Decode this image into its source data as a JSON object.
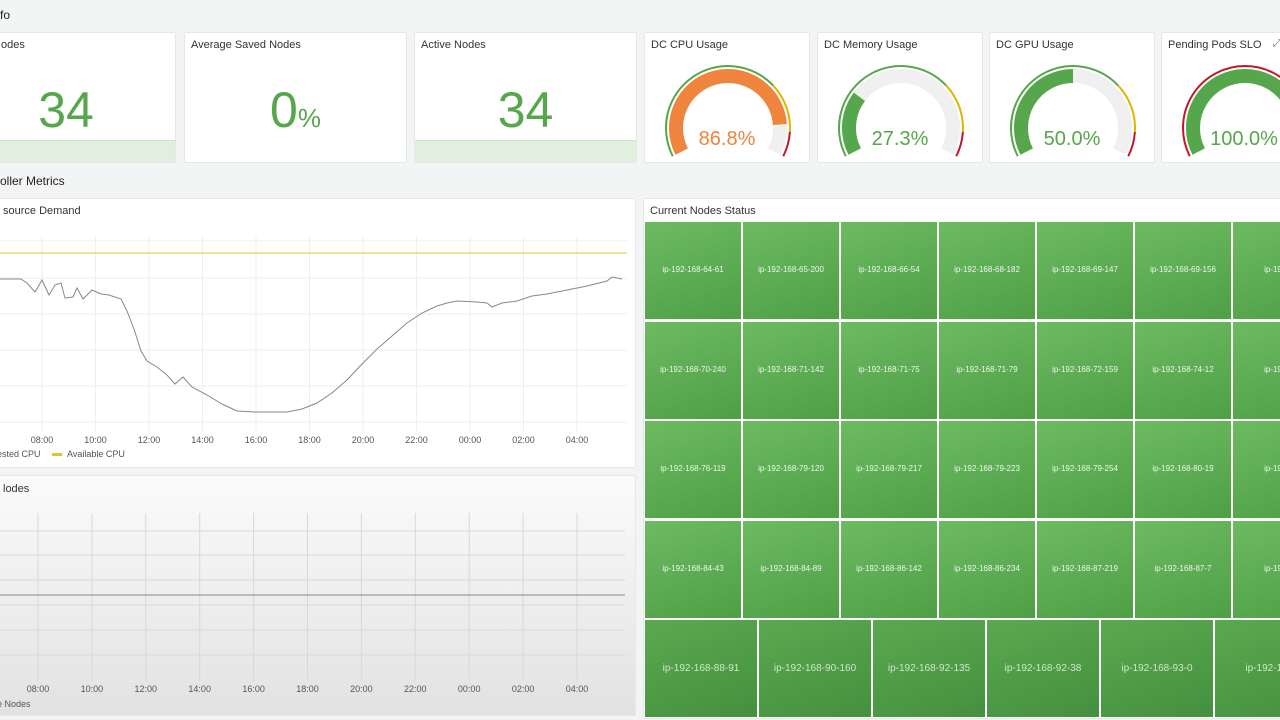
{
  "rows": {
    "info": "fo",
    "controller": "oller Metrics"
  },
  "stats": [
    {
      "title": "odes",
      "value": "34",
      "unit": ""
    },
    {
      "title": "Average Saved Nodes",
      "value": "0",
      "unit": "%"
    },
    {
      "title": "Active Nodes",
      "value": "34",
      "unit": ""
    }
  ],
  "gauges": [
    {
      "title": "DC CPU Usage",
      "value": 86.8,
      "display": "86.8%",
      "color": "#ef843c"
    },
    {
      "title": "DC Memory Usage",
      "value": 27.3,
      "display": "27.3%",
      "color": "#56a64b"
    },
    {
      "title": "DC GPU Usage",
      "value": 50.0,
      "display": "50.0%",
      "color": "#56a64b"
    },
    {
      "title": "Pending Pods SLO",
      "value": 100.0,
      "display": "100.0%",
      "color": "#56a64b",
      "threshold": "red"
    }
  ],
  "threshold_colors": {
    "green": "#56a64b",
    "yellow": "#e0b400",
    "red": "#c4162a"
  },
  "resource_demand": {
    "title": "source Demand",
    "x_ticks": [
      "08:00",
      "10:00",
      "12:00",
      "14:00",
      "16:00",
      "18:00",
      "20:00",
      "22:00",
      "00:00",
      "02:00",
      "04:00"
    ],
    "legend": [
      {
        "label": "ested CPU",
        "color": "#888888"
      },
      {
        "label": "Available CPU",
        "color": "#e0c23a"
      }
    ]
  },
  "nodes_chart": {
    "title": "lodes",
    "x_ticks": [
      "08:00",
      "10:00",
      "12:00",
      "14:00",
      "16:00",
      "18:00",
      "20:00",
      "22:00",
      "00:00",
      "02:00",
      "04:00"
    ],
    "legend": "e Nodes"
  },
  "node_status": {
    "title": "Current Nodes Status",
    "rows": [
      [
        "ip-192-168-64-61",
        "ip-192-168-65-200",
        "ip-192-168-66-54",
        "ip-192-168-68-182",
        "ip-192-168-69-147",
        "ip-192-168-69-156",
        "ip-192-16"
      ],
      [
        "ip-192-168-70-240",
        "ip-192-168-71-142",
        "ip-192-168-71-75",
        "ip-192-168-71-79",
        "ip-192-168-72-159",
        "ip-192-168-74-12",
        "ip-192-16"
      ],
      [
        "ip-192-168-76-119",
        "ip-192-168-79-120",
        "ip-192-168-79-217",
        "ip-192-168-79-223",
        "ip-192-168-79-254",
        "ip-192-168-80-19",
        "ip-192-16"
      ],
      [
        "ip-192-168-84-43",
        "ip-192-168-84-89",
        "ip-192-168-86-142",
        "ip-192-168-86-234",
        "ip-192-168-87-219",
        "ip-192-168-87-7",
        "ip-192-16"
      ]
    ],
    "last_row": [
      "ip-192-168-88-91",
      "ip-192-168-90-160",
      "ip-192-168-92-135",
      "ip-192-168-92-38",
      "ip-192-168-93-0",
      "ip-192-168-"
    ]
  }
}
